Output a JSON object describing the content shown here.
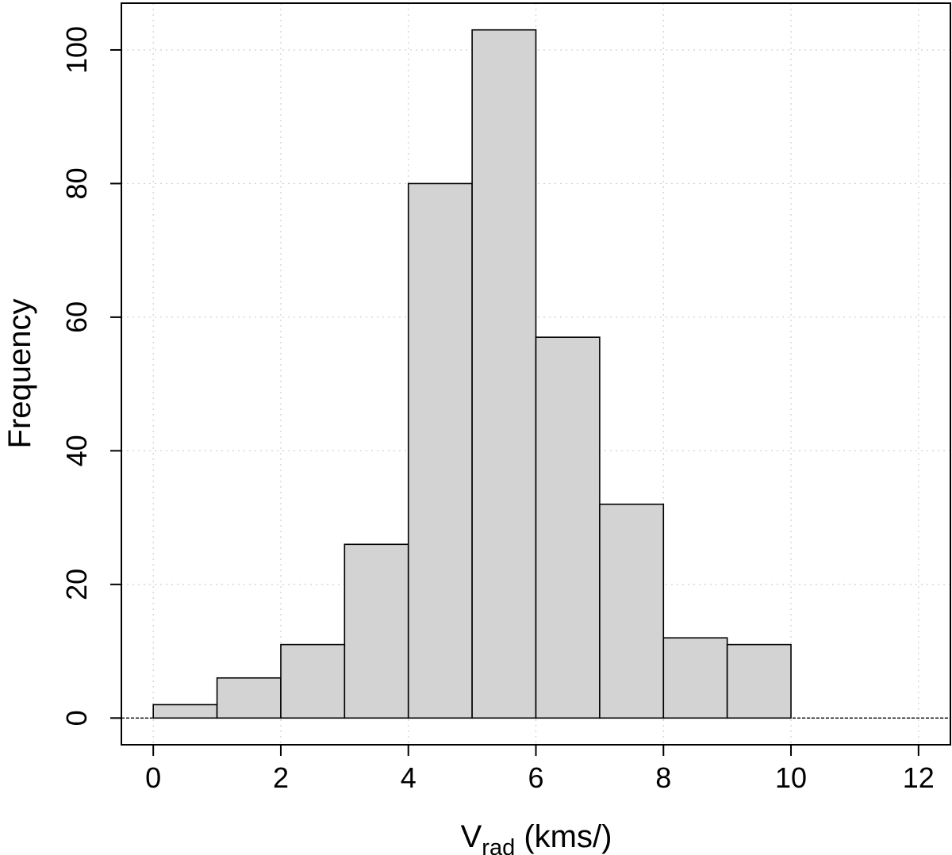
{
  "chart_data": {
    "type": "bar",
    "bins": [
      {
        "from": 0,
        "to": 1,
        "value": 2
      },
      {
        "from": 1,
        "to": 2,
        "value": 6
      },
      {
        "from": 2,
        "to": 3,
        "value": 11
      },
      {
        "from": 3,
        "to": 4,
        "value": 26
      },
      {
        "from": 4,
        "to": 5,
        "value": 80
      },
      {
        "from": 5,
        "to": 6,
        "value": 103
      },
      {
        "from": 6,
        "to": 7,
        "value": 57
      },
      {
        "from": 7,
        "to": 8,
        "value": 32
      },
      {
        "from": 8,
        "to": 9,
        "value": 12
      },
      {
        "from": 9,
        "to": 10,
        "value": 11
      }
    ],
    "title": "",
    "xlabel_main": "V",
    "xlabel_sub": "rad",
    "xlabel_unit": " (kms/)",
    "ylabel": "Frequency",
    "xlim": [
      -0.5,
      12.5
    ],
    "ylim": [
      -4,
      107
    ],
    "xticks": [
      0,
      2,
      4,
      6,
      8,
      10,
      12
    ],
    "yticks": [
      0,
      20,
      40,
      60,
      80,
      100
    ],
    "grid": true,
    "colors": {
      "bar_fill": "#d3d3d3",
      "bar_stroke": "#000000",
      "grid": "#d0d0d0"
    }
  }
}
